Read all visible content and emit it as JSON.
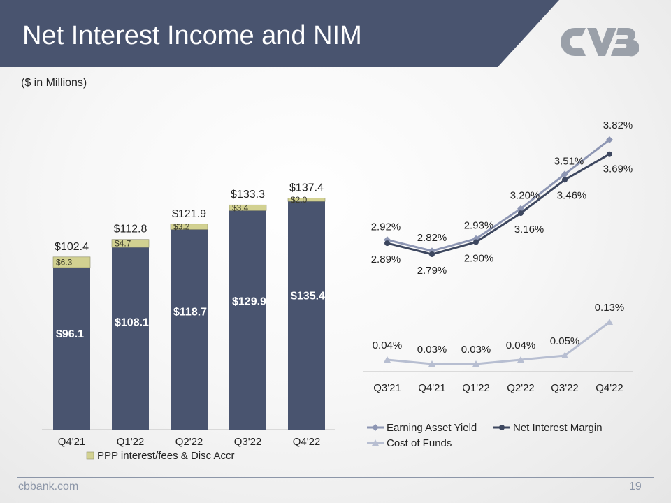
{
  "slide": {
    "title": "Net Interest Income and NIM",
    "units_note": "($ in Millions)",
    "footer_site": "cbbank.com",
    "page_number": "19"
  },
  "colors": {
    "header": "#49546f",
    "bar_main": "#49546f",
    "bar_accent": "#d2d191",
    "eay": "#8d96b3",
    "nim": "#3d475f",
    "cof": "#b7bed1",
    "logo": "#9aa0a9"
  },
  "chart_data": [
    {
      "type": "bar",
      "stacked": true,
      "categories": [
        "Q4'21",
        "Q1'22",
        "Q2'22",
        "Q3'22",
        "Q4'22"
      ],
      "series": [
        {
          "name": "Net Interest Income",
          "values": [
            96.1,
            108.1,
            118.7,
            129.9,
            135.4
          ],
          "labels": [
            "$96.1",
            "$108.1",
            "$118.7",
            "$129.9",
            "$135.4"
          ]
        },
        {
          "name": "PPP interest/fees & Disc Accr",
          "values": [
            6.3,
            4.7,
            3.2,
            3.4,
            2.0
          ],
          "labels": [
            "$6.3",
            "$4.7",
            "$3.2",
            "$3.4",
            "$2.0"
          ]
        }
      ],
      "totals": [
        102.4,
        112.8,
        121.9,
        133.3,
        137.4
      ],
      "total_labels": [
        "$102.4",
        "$112.8",
        "$121.9",
        "$133.3",
        "$137.4"
      ],
      "legend": [
        "PPP interest/fees & Disc Accr"
      ],
      "ylim": [
        0,
        145
      ]
    },
    {
      "type": "line",
      "categories": [
        "Q3'21",
        "Q4'21",
        "Q1'22",
        "Q2'22",
        "Q3'22",
        "Q4'22"
      ],
      "series": [
        {
          "name": "Earning Asset Yield",
          "marker": "diamond",
          "values": [
            2.92,
            2.82,
            2.93,
            3.2,
            3.51,
            3.82
          ],
          "labels": [
            "2.92%",
            "2.82%",
            "2.93%",
            "3.20%",
            "3.51%",
            "3.82%"
          ]
        },
        {
          "name": "Net Interest Margin",
          "marker": "circle",
          "values": [
            2.89,
            2.79,
            2.9,
            3.16,
            3.46,
            3.69
          ],
          "labels": [
            "2.89%",
            "2.79%",
            "2.90%",
            "3.16%",
            "3.46%",
            "3.69%"
          ]
        },
        {
          "name": "Cost of Funds",
          "marker": "triangle",
          "values": [
            0.04,
            0.03,
            0.03,
            0.04,
            0.05,
            0.13
          ],
          "labels": [
            "0.04%",
            "0.03%",
            "0.03%",
            "0.04%",
            "0.05%",
            "0.13%"
          ]
        }
      ],
      "legend": [
        "Earning Asset Yield",
        "Net Interest Margin",
        "Cost of Funds"
      ]
    }
  ]
}
